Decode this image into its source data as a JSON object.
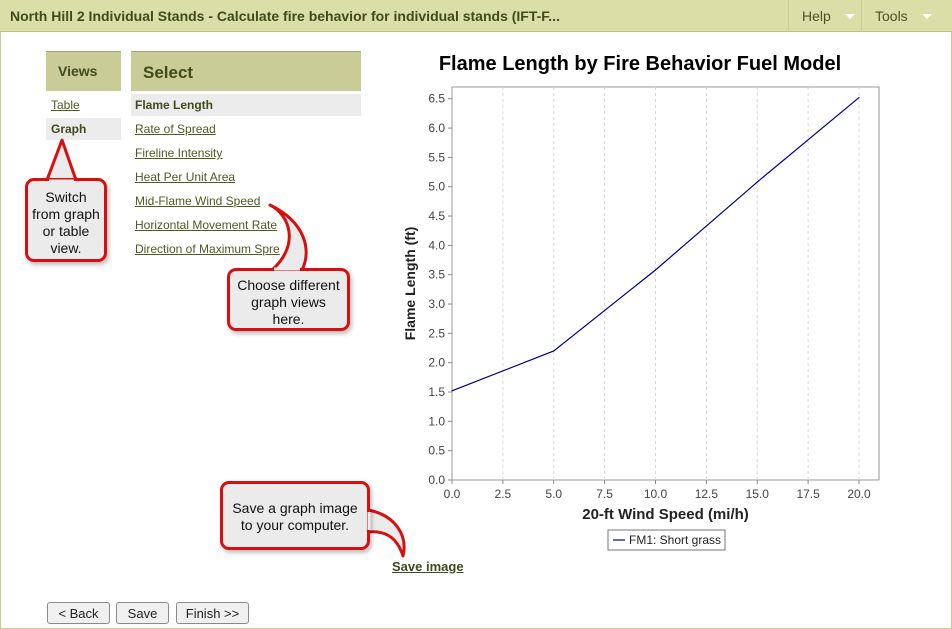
{
  "header": {
    "title": "North Hill 2 Individual Stands - Calculate fire behavior for individual stands (IFT-F...",
    "menus": [
      "Help",
      "Tools"
    ]
  },
  "views": {
    "heading": "Views",
    "items": [
      "Table",
      "Graph"
    ],
    "active": "Graph"
  },
  "select": {
    "heading": "Select",
    "items": [
      "Flame Length",
      "Rate of Spread",
      "Fireline Intensity",
      "Heat Per Unit Area",
      "Mid-Flame Wind Speed",
      "Horizontal Movement Rate",
      "Direction of Maximum Spre"
    ],
    "active": "Flame Length"
  },
  "callouts": {
    "switch_view": "Switch from graph or table view.",
    "graph_views": "Choose different graph views here.",
    "save_image": "Save a graph image to your computer."
  },
  "actions": {
    "save_image": "Save image",
    "back": "< Back",
    "save": "Save",
    "finish": "Finish >>"
  },
  "colors": {
    "accent": "#d9dfa6",
    "panel": "#c9cc96",
    "callout_border": "#d90f0f",
    "series": "#00008b"
  },
  "chart_data": {
    "type": "line",
    "title": "Flame Length by Fire Behavior Fuel Model",
    "xlabel": "20-ft Wind Speed (mi/h)",
    "ylabel": "Flame Length (ft)",
    "xlim": [
      0,
      20
    ],
    "ylim": [
      0,
      6.7
    ],
    "xticks": [
      "0.0",
      "2.5",
      "5.0",
      "7.5",
      "10.0",
      "12.5",
      "15.0",
      "17.5",
      "20.0"
    ],
    "yticks": [
      "0.0",
      "0.5",
      "1.0",
      "1.5",
      "2.0",
      "2.5",
      "3.0",
      "3.5",
      "4.0",
      "4.5",
      "5.0",
      "5.5",
      "6.0",
      "6.5"
    ],
    "grid": "vertical dashed",
    "legend": "bottom",
    "series": [
      {
        "name": "FM1: Short grass",
        "x": [
          0,
          5,
          10,
          15,
          20
        ],
        "values": [
          1.52,
          2.2,
          3.58,
          5.08,
          6.52
        ]
      }
    ]
  }
}
